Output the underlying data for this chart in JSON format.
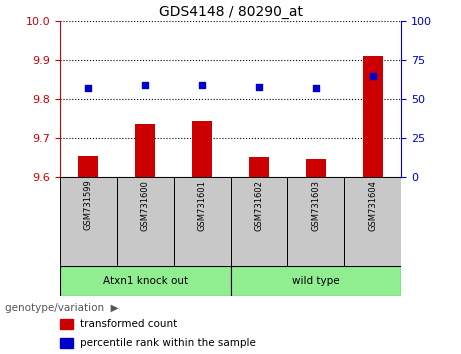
{
  "title": "GDS4148 / 80290_at",
  "samples": [
    "GSM731599",
    "GSM731600",
    "GSM731601",
    "GSM731602",
    "GSM731603",
    "GSM731604"
  ],
  "transformed_counts": [
    9.655,
    9.735,
    9.745,
    9.652,
    9.645,
    9.91
  ],
  "percentile_ranks": [
    57,
    59,
    59,
    58,
    57,
    65
  ],
  "ylim_left": [
    9.6,
    10.0
  ],
  "ylim_right": [
    0,
    100
  ],
  "yticks_left": [
    9.6,
    9.7,
    9.8,
    9.9,
    10.0
  ],
  "yticks_right": [
    0,
    25,
    50,
    75,
    100
  ],
  "groups": [
    {
      "label": "Atxn1 knock out",
      "indices": [
        0,
        1,
        2
      ],
      "color": "#90EE90"
    },
    {
      "label": "wild type",
      "indices": [
        3,
        4,
        5
      ],
      "color": "#90EE90"
    }
  ],
  "bar_color": "#CC0000",
  "dot_color": "#0000CC",
  "bar_width": 0.35,
  "left_axis_color": "#CC0000",
  "right_axis_color": "#0000CC",
  "sample_box_color": "#C8C8C8",
  "group_box_color": "#90EE90",
  "legend_red_label": "transformed count",
  "legend_blue_label": "percentile rank within the sample",
  "genotype_label": "genotype/variation"
}
